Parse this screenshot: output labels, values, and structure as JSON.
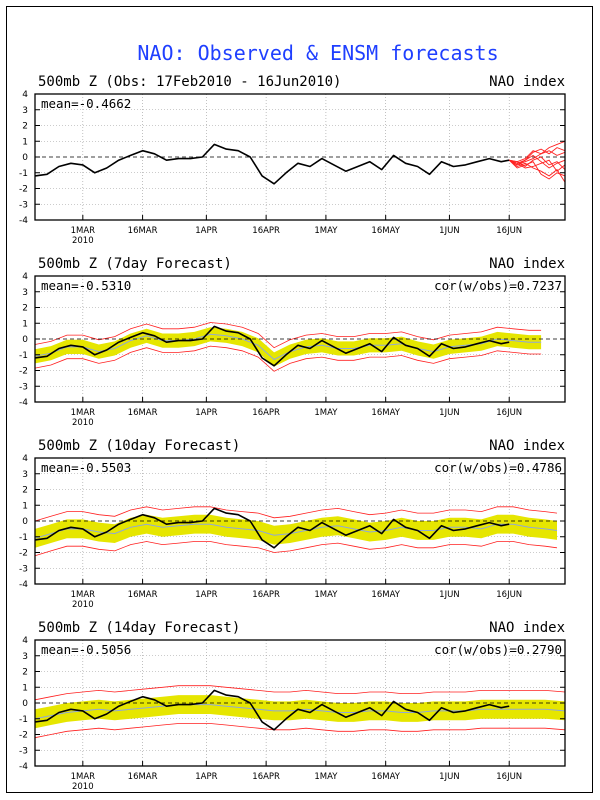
{
  "title": "NAO: Observed & ENSM forecasts",
  "colors": {
    "title": "#1f3fff",
    "observed": "#000000",
    "ensemble": "#ff2020",
    "spread": "#e6e600",
    "mean_line": "#8fa8d8",
    "grid": "#999999"
  },
  "chart_data": [
    {
      "type": "line",
      "title": "500mb Z (Obs: 17Feb2010 - 16Jun2010)",
      "right_title": "NAO index",
      "mean_label": "mean=-0.4662",
      "cor_label": "",
      "xlim_days": [
        0,
        133
      ],
      "ylim": [
        -4,
        4
      ],
      "yticks": [
        -4,
        -3,
        -2,
        -1,
        0,
        1,
        2,
        3,
        4
      ],
      "xticks": [
        {
          "day": 12,
          "label": "1MAR",
          "sub": "2010"
        },
        {
          "day": 27,
          "label": "16MAR",
          "sub": ""
        },
        {
          "day": 43,
          "label": "1APR",
          "sub": ""
        },
        {
          "day": 58,
          "label": "16APR",
          "sub": ""
        },
        {
          "day": 73,
          "label": "1MAY",
          "sub": ""
        },
        {
          "day": 88,
          "label": "16MAY",
          "sub": ""
        },
        {
          "day": 104,
          "label": "1JUN",
          "sub": ""
        },
        {
          "day": 119,
          "label": "16JUN",
          "sub": ""
        }
      ],
      "grid": true,
      "series": [
        {
          "x": [
            0,
            3,
            6,
            9,
            12,
            15,
            18,
            21,
            24,
            27,
            30,
            33,
            36,
            39,
            42,
            45,
            48,
            51,
            54,
            57,
            60,
            63,
            66,
            69,
            72,
            75,
            78,
            81,
            84,
            87,
            90,
            93,
            96,
            99,
            102,
            105,
            108,
            111,
            114,
            117,
            119
          ],
          "values": [
            -1.2,
            -1.1,
            -0.6,
            -0.4,
            -0.5,
            -1.0,
            -0.7,
            -0.2,
            0.1,
            0.4,
            0.2,
            -0.2,
            -0.1,
            -0.1,
            0.0,
            0.8,
            0.5,
            0.4,
            0.0,
            -1.2,
            -1.7,
            -1.0,
            -0.4,
            -0.6,
            -0.1,
            -0.5,
            -0.9,
            -0.6,
            -0.3,
            -0.8,
            0.1,
            -0.4,
            -0.6,
            -1.1,
            -0.3,
            -0.6,
            -0.5,
            -0.3,
            -0.1,
            -0.3,
            -0.2
          ]
        }
      ],
      "ensemble": {
        "x": [
          119,
          121,
          123,
          125,
          127,
          129,
          131,
          133
        ],
        "members": [
          [
            -0.2,
            -0.4,
            -0.2,
            0.3,
            0.5,
            0.2,
            0.6,
            0.4
          ],
          [
            -0.2,
            -0.5,
            -0.3,
            -0.1,
            0.2,
            0.4,
            0.1,
            0.3
          ],
          [
            -0.2,
            -0.3,
            -0.6,
            -0.2,
            0.0,
            -0.5,
            -0.3,
            -0.8
          ],
          [
            -0.2,
            -0.6,
            -0.4,
            -0.7,
            -0.9,
            -1.2,
            -0.8,
            -1.6
          ],
          [
            -0.2,
            -0.3,
            -0.1,
            0.4,
            0.2,
            0.6,
            0.8,
            1.0
          ],
          [
            -0.2,
            -0.7,
            -0.5,
            -0.3,
            -1.1,
            -1.4,
            -1.0,
            -1.2
          ],
          [
            -0.2,
            -0.4,
            -0.7,
            -0.6,
            -0.4,
            -0.2,
            -0.9,
            -0.5
          ],
          [
            -0.2,
            -0.5,
            -0.2,
            0.1,
            -0.3,
            -0.7,
            -0.4,
            -0.2
          ]
        ]
      }
    },
    {
      "type": "line",
      "title": "500mb Z (7day Forecast)",
      "right_title": "NAO index",
      "mean_label": "mean=-0.5310",
      "cor_label": "cor(w/obs)=0.7237",
      "xlim_days": [
        0,
        133
      ],
      "ylim": [
        -4,
        4
      ],
      "yticks": [
        -4,
        -3,
        -2,
        -1,
        0,
        1,
        2,
        3,
        4
      ],
      "xticks": [
        {
          "day": 12,
          "label": "1MAR",
          "sub": "2010"
        },
        {
          "day": 27,
          "label": "16MAR",
          "sub": ""
        },
        {
          "day": 43,
          "label": "1APR",
          "sub": ""
        },
        {
          "day": 58,
          "label": "16APR",
          "sub": ""
        },
        {
          "day": 73,
          "label": "1MAY",
          "sub": ""
        },
        {
          "day": 88,
          "label": "16MAY",
          "sub": ""
        },
        {
          "day": 104,
          "label": "1JUN",
          "sub": ""
        },
        {
          "day": 119,
          "label": "16JUN",
          "sub": ""
        }
      ],
      "grid": true,
      "series": [
        {
          "x": [
            0,
            3,
            6,
            9,
            12,
            15,
            18,
            21,
            24,
            27,
            30,
            33,
            36,
            39,
            42,
            45,
            48,
            51,
            54,
            57,
            60,
            63,
            66,
            69,
            72,
            75,
            78,
            81,
            84,
            87,
            90,
            93,
            96,
            99,
            102,
            105,
            108,
            111,
            114,
            117,
            119
          ],
          "values": [
            -1.2,
            -1.1,
            -0.6,
            -0.4,
            -0.5,
            -1.0,
            -0.7,
            -0.2,
            0.1,
            0.4,
            0.2,
            -0.2,
            -0.1,
            -0.1,
            0.0,
            0.8,
            0.5,
            0.4,
            0.0,
            -1.2,
            -1.7,
            -1.0,
            -0.4,
            -0.6,
            -0.1,
            -0.5,
            -0.9,
            -0.6,
            -0.3,
            -0.8,
            0.1,
            -0.4,
            -0.6,
            -1.1,
            -0.3,
            -0.6,
            -0.5,
            -0.3,
            -0.1,
            -0.3,
            -0.2
          ]
        }
      ],
      "forecast": {
        "x": [
          0,
          4,
          8,
          12,
          16,
          20,
          24,
          28,
          32,
          36,
          40,
          44,
          48,
          52,
          56,
          60,
          64,
          68,
          72,
          76,
          80,
          84,
          88,
          92,
          96,
          100,
          104,
          108,
          112,
          116,
          120,
          124,
          127
        ],
        "mean": [
          -1.1,
          -0.9,
          -0.5,
          -0.5,
          -0.8,
          -0.6,
          -0.1,
          0.2,
          -0.1,
          -0.1,
          0.0,
          0.3,
          0.2,
          0.0,
          -0.4,
          -1.3,
          -0.8,
          -0.5,
          -0.4,
          -0.6,
          -0.6,
          -0.4,
          -0.4,
          -0.3,
          -0.6,
          -0.8,
          -0.5,
          -0.4,
          -0.3,
          0.0,
          -0.1,
          -0.2,
          -0.2
        ],
        "spread": 0.45,
        "envelope": 0.75
      }
    },
    {
      "type": "line",
      "title": "500mb Z (10day Forecast)",
      "right_title": "NAO index",
      "mean_label": "mean=-0.5503",
      "cor_label": "cor(w/obs)=0.4786",
      "xlim_days": [
        0,
        133
      ],
      "ylim": [
        -4,
        4
      ],
      "yticks": [
        -4,
        -3,
        -2,
        -1,
        0,
        1,
        2,
        3,
        4
      ],
      "xticks": [
        {
          "day": 12,
          "label": "1MAR",
          "sub": "2010"
        },
        {
          "day": 27,
          "label": "16MAR",
          "sub": ""
        },
        {
          "day": 43,
          "label": "1APR",
          "sub": ""
        },
        {
          "day": 58,
          "label": "16APR",
          "sub": ""
        },
        {
          "day": 73,
          "label": "1MAY",
          "sub": ""
        },
        {
          "day": 88,
          "label": "16MAY",
          "sub": ""
        },
        {
          "day": 104,
          "label": "1JUN",
          "sub": ""
        },
        {
          "day": 119,
          "label": "16JUN",
          "sub": ""
        }
      ],
      "grid": true,
      "series": [
        {
          "x": [
            0,
            3,
            6,
            9,
            12,
            15,
            18,
            21,
            24,
            27,
            30,
            33,
            36,
            39,
            42,
            45,
            48,
            51,
            54,
            57,
            60,
            63,
            66,
            69,
            72,
            75,
            78,
            81,
            84,
            87,
            90,
            93,
            96,
            99,
            102,
            105,
            108,
            111,
            114,
            117,
            119
          ],
          "values": [
            -1.2,
            -1.1,
            -0.6,
            -0.4,
            -0.5,
            -1.0,
            -0.7,
            -0.2,
            0.1,
            0.4,
            0.2,
            -0.2,
            -0.1,
            -0.1,
            0.0,
            0.8,
            0.5,
            0.4,
            0.0,
            -1.2,
            -1.7,
            -1.0,
            -0.4,
            -0.6,
            -0.1,
            -0.5,
            -0.9,
            -0.6,
            -0.3,
            -0.8,
            0.1,
            -0.4,
            -0.6,
            -1.1,
            -0.3,
            -0.6,
            -0.5,
            -0.3,
            -0.1,
            -0.3,
            -0.2
          ]
        }
      ],
      "forecast": {
        "x": [
          0,
          4,
          8,
          12,
          16,
          20,
          24,
          28,
          32,
          36,
          40,
          44,
          48,
          52,
          56,
          60,
          64,
          68,
          72,
          76,
          80,
          84,
          88,
          92,
          96,
          100,
          104,
          108,
          112,
          116,
          120,
          124,
          128,
          131
        ],
        "mean": [
          -1.1,
          -0.8,
          -0.5,
          -0.5,
          -0.7,
          -0.8,
          -0.4,
          -0.2,
          -0.4,
          -0.3,
          -0.2,
          -0.2,
          -0.4,
          -0.5,
          -0.6,
          -0.9,
          -0.8,
          -0.6,
          -0.4,
          -0.3,
          -0.5,
          -0.7,
          -0.6,
          -0.4,
          -0.6,
          -0.6,
          -0.4,
          -0.4,
          -0.5,
          -0.2,
          -0.2,
          -0.4,
          -0.5,
          -0.6
        ],
        "spread": 0.6,
        "envelope": 1.1
      }
    },
    {
      "type": "line",
      "title": "500mb Z (14day Forecast)",
      "right_title": "NAO index",
      "mean_label": "mean=-0.5056",
      "cor_label": "cor(w/obs)=0.2790",
      "xlim_days": [
        0,
        133
      ],
      "ylim": [
        -4,
        4
      ],
      "yticks": [
        -4,
        -3,
        -2,
        -1,
        0,
        1,
        2,
        3,
        4
      ],
      "xticks": [
        {
          "day": 12,
          "label": "1MAR",
          "sub": "2010"
        },
        {
          "day": 27,
          "label": "16MAR",
          "sub": ""
        },
        {
          "day": 43,
          "label": "1APR",
          "sub": ""
        },
        {
          "day": 58,
          "label": "16APR",
          "sub": ""
        },
        {
          "day": 73,
          "label": "1MAY",
          "sub": ""
        },
        {
          "day": 88,
          "label": "16MAY",
          "sub": ""
        },
        {
          "day": 104,
          "label": "1JUN",
          "sub": ""
        },
        {
          "day": 119,
          "label": "16JUN",
          "sub": ""
        }
      ],
      "grid": true,
      "series": [
        {
          "x": [
            0,
            3,
            6,
            9,
            12,
            15,
            18,
            21,
            24,
            27,
            30,
            33,
            36,
            39,
            42,
            45,
            48,
            51,
            54,
            57,
            60,
            63,
            66,
            69,
            72,
            75,
            78,
            81,
            84,
            87,
            90,
            93,
            96,
            99,
            102,
            105,
            108,
            111,
            114,
            117,
            119
          ],
          "values": [
            -1.2,
            -1.1,
            -0.6,
            -0.4,
            -0.5,
            -1.0,
            -0.7,
            -0.2,
            0.1,
            0.4,
            0.2,
            -0.2,
            -0.1,
            -0.1,
            0.0,
            0.8,
            0.5,
            0.4,
            0.0,
            -1.2,
            -1.7,
            -1.0,
            -0.4,
            -0.6,
            -0.1,
            -0.5,
            -0.9,
            -0.6,
            -0.3,
            -0.8,
            0.1,
            -0.4,
            -0.6,
            -1.1,
            -0.3,
            -0.6,
            -0.5,
            -0.3,
            -0.1,
            -0.3,
            -0.2
          ]
        }
      ],
      "forecast": {
        "x": [
          0,
          4,
          8,
          12,
          16,
          20,
          24,
          28,
          32,
          36,
          40,
          44,
          48,
          52,
          56,
          60,
          64,
          68,
          72,
          76,
          80,
          84,
          88,
          92,
          96,
          100,
          104,
          108,
          112,
          116,
          120,
          124,
          128,
          133
        ],
        "mean": [
          -1.0,
          -0.8,
          -0.6,
          -0.5,
          -0.4,
          -0.5,
          -0.4,
          -0.3,
          -0.2,
          -0.1,
          -0.1,
          -0.1,
          -0.2,
          -0.3,
          -0.4,
          -0.5,
          -0.5,
          -0.4,
          -0.5,
          -0.6,
          -0.6,
          -0.5,
          -0.5,
          -0.6,
          -0.6,
          -0.5,
          -0.5,
          -0.5,
          -0.4,
          -0.4,
          -0.4,
          -0.4,
          -0.4,
          -0.5
        ],
        "spread": 0.6,
        "envelope": 1.2
      }
    }
  ]
}
